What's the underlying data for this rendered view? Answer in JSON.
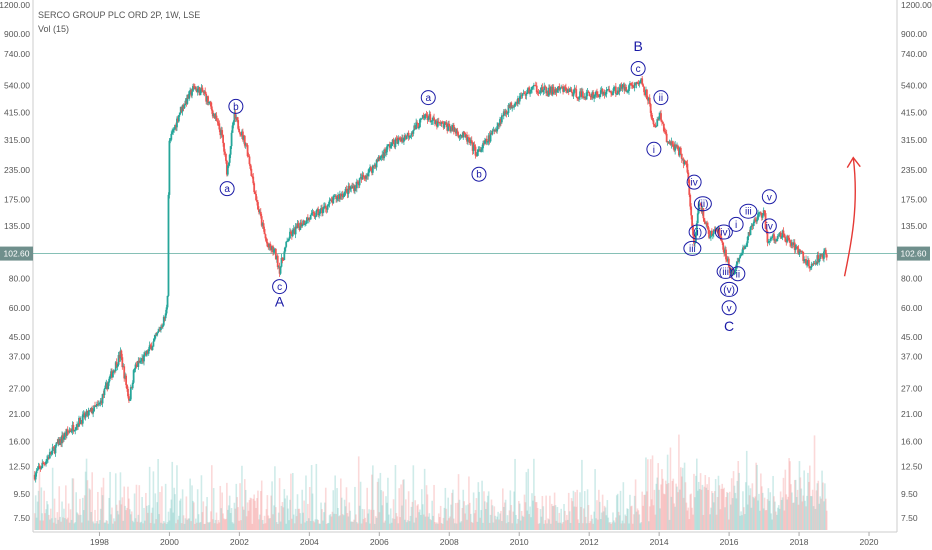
{
  "header": {
    "title": "SERCO GROUP PLC ORD 2P, 1W, LSE",
    "indicator": "Vol (15)"
  },
  "current_price_label": "102.60",
  "colors": {
    "up": "#26a69a",
    "down": "#ef5350",
    "wave": "#1a1aa6",
    "arrow": "#e53935",
    "price_line": "#3a9a8a",
    "price_tag": "#6f8f8c"
  },
  "chart_data": {
    "type": "candlestick",
    "title": "SERCO GROUP PLC ORD 2P, 1W, LSE",
    "scale": "log",
    "y_ticks": [
      "1200.00",
      "900.00",
      "740.00",
      "540.00",
      "415.00",
      "315.00",
      "235.00",
      "175.00",
      "135.00",
      "102.60",
      "80.00",
      "60.00",
      "45.00",
      "37.00",
      "27.00",
      "21.00",
      "16.00",
      "12.50",
      "9.50",
      "7.50"
    ],
    "x_ticks": [
      "1998",
      "2000",
      "2002",
      "2004",
      "2006",
      "2008",
      "2010",
      "2012",
      "2014",
      "2016",
      "2018",
      "2020"
    ],
    "xlim": [
      1996.1,
      2020.8
    ],
    "price_path": [
      [
        1996.15,
        11.5
      ],
      [
        1996.5,
        13.5
      ],
      [
        1997.0,
        17
      ],
      [
        1997.5,
        20
      ],
      [
        1998.0,
        23
      ],
      [
        1998.3,
        30
      ],
      [
        1998.6,
        38
      ],
      [
        1998.85,
        24
      ],
      [
        1999.0,
        33
      ],
      [
        1999.3,
        37
      ],
      [
        1999.6,
        44
      ],
      [
        1999.9,
        56
      ],
      [
        1999.96,
        75
      ],
      [
        1999.98,
        300
      ],
      [
        2000.3,
        420
      ],
      [
        2000.7,
        530
      ],
      [
        2001.0,
        500
      ],
      [
        2001.2,
        430
      ],
      [
        2001.5,
        330
      ],
      [
        2001.65,
        230
      ],
      [
        2001.85,
        400
      ],
      [
        2002.2,
        300
      ],
      [
        2002.5,
        170
      ],
      [
        2002.8,
        110
      ],
      [
        2003.0,
        105
      ],
      [
        2003.15,
        88
      ],
      [
        2003.4,
        120
      ],
      [
        2003.8,
        140
      ],
      [
        2004.3,
        155
      ],
      [
        2004.8,
        180
      ],
      [
        2005.3,
        200
      ],
      [
        2005.8,
        240
      ],
      [
        2006.3,
        300
      ],
      [
        2006.8,
        330
      ],
      [
        2007.2,
        380
      ],
      [
        2007.35,
        405
      ],
      [
        2007.6,
        370
      ],
      [
        2008.0,
        360
      ],
      [
        2008.5,
        320
      ],
      [
        2008.8,
        275
      ],
      [
        2009.2,
        330
      ],
      [
        2009.6,
        420
      ],
      [
        2010.0,
        480
      ],
      [
        2010.4,
        530
      ],
      [
        2010.8,
        510
      ],
      [
        2011.3,
        520
      ],
      [
        2011.8,
        490
      ],
      [
        2012.3,
        500
      ],
      [
        2012.8,
        520
      ],
      [
        2013.3,
        545
      ],
      [
        2013.5,
        560
      ],
      [
        2013.7,
        470
      ],
      [
        2013.85,
        345
      ],
      [
        2014.0,
        410
      ],
      [
        2014.2,
        320
      ],
      [
        2014.6,
        280
      ],
      [
        2014.8,
        240
      ],
      [
        2015.0,
        110
      ],
      [
        2015.15,
        175
      ],
      [
        2015.4,
        125
      ],
      [
        2015.7,
        130
      ],
      [
        2016.0,
        90
      ],
      [
        2016.1,
        82
      ],
      [
        2016.3,
        100
      ],
      [
        2016.5,
        115
      ],
      [
        2016.7,
        140
      ],
      [
        2017.0,
        155
      ],
      [
        2017.1,
        115
      ],
      [
        2017.5,
        125
      ],
      [
        2018.0,
        105
      ],
      [
        2018.3,
        90
      ],
      [
        2018.6,
        100
      ],
      [
        2018.8,
        103
      ]
    ],
    "volume_baseline": 7.5,
    "annotations": [
      {
        "text": "a",
        "year": 2001.65,
        "price": 195,
        "circled": true
      },
      {
        "text": "b",
        "year": 2001.9,
        "price": 440,
        "circled": true
      },
      {
        "text": "c",
        "year": 2003.15,
        "price": 74,
        "circled": true
      },
      {
        "text": "A",
        "year": 2003.15,
        "price": 64,
        "circled": false
      },
      {
        "text": "a",
        "year": 2007.4,
        "price": 480,
        "circled": true
      },
      {
        "text": "b",
        "year": 2008.85,
        "price": 225,
        "circled": true
      },
      {
        "text": "B",
        "year": 2013.4,
        "price": 800,
        "circled": false
      },
      {
        "text": "c",
        "year": 2013.4,
        "price": 640,
        "circled": true
      },
      {
        "text": "ii",
        "year": 2014.05,
        "price": 480,
        "circled": true
      },
      {
        "text": "i",
        "year": 2013.85,
        "price": 288,
        "circled": true
      },
      {
        "text": "iv",
        "year": 2015.0,
        "price": 208,
        "circled": true
      },
      {
        "text": "(ii)",
        "year": 2015.25,
        "price": 168,
        "circled": true
      },
      {
        "text": "(i)",
        "year": 2015.1,
        "price": 127,
        "circled": true
      },
      {
        "text": "iii",
        "year": 2014.95,
        "price": 108,
        "circled": true
      },
      {
        "text": "(iv)",
        "year": 2015.85,
        "price": 127,
        "circled": true
      },
      {
        "text": "i",
        "year": 2016.2,
        "price": 137,
        "circled": true
      },
      {
        "text": "(iii)",
        "year": 2015.9,
        "price": 86,
        "circled": true
      },
      {
        "text": "ii",
        "year": 2016.25,
        "price": 84,
        "circled": true
      },
      {
        "text": "(v)",
        "year": 2016.0,
        "price": 72,
        "circled": true
      },
      {
        "text": "v",
        "year": 2016.0,
        "price": 60,
        "circled": true
      },
      {
        "text": "C",
        "year": 2016.0,
        "price": 50,
        "circled": false
      },
      {
        "text": "iii",
        "year": 2016.55,
        "price": 156,
        "circled": true
      },
      {
        "text": "v",
        "year": 2017.15,
        "price": 180,
        "circled": true
      },
      {
        "text": "iv",
        "year": 2017.15,
        "price": 135,
        "circled": true
      }
    ],
    "arrow": {
      "from": [
        2019.3,
        82
      ],
      "to": [
        2019.55,
        265
      ]
    }
  }
}
